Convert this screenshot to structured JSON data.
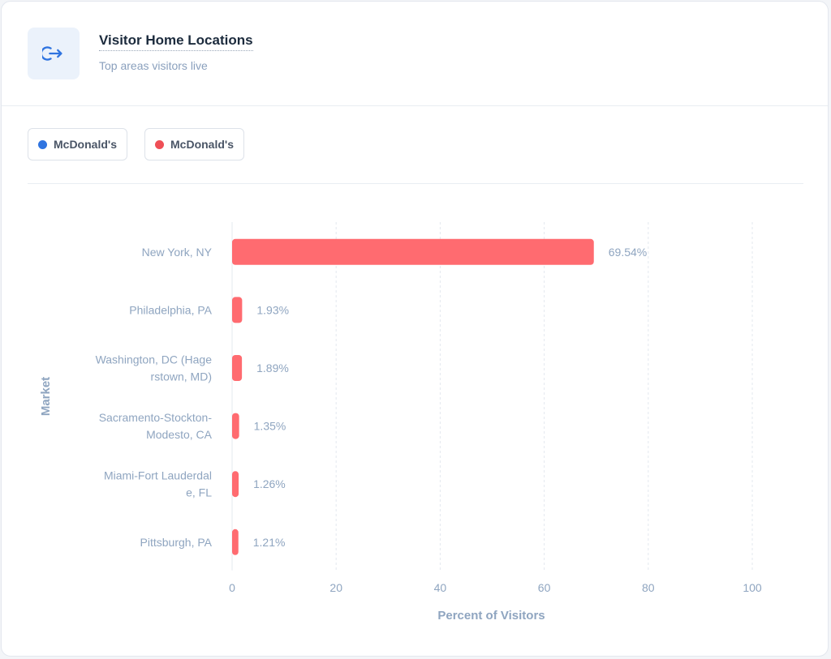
{
  "header": {
    "title": "Visitor Home Locations",
    "subtitle": "Top areas visitors live",
    "icon": "exit-arrow-icon"
  },
  "legend": [
    {
      "label": "McDonald's",
      "color": "#2f74e0"
    },
    {
      "label": "McDonald's",
      "color": "#ef4f56"
    }
  ],
  "chart_data": {
    "type": "bar",
    "orientation": "horizontal",
    "categories": [
      [
        "New York, NY"
      ],
      [
        "Philadelphia, PA"
      ],
      [
        "Washington, DC (Hage",
        "rstown, MD)"
      ],
      [
        "Sacramento-Stockton-",
        "Modesto, CA"
      ],
      [
        "Miami-Fort Lauderdal",
        "e, FL"
      ],
      [
        "Pittsburgh, PA"
      ]
    ],
    "series": [
      {
        "name": "McDonald's",
        "color": "#ff6b70",
        "values": [
          69.54,
          1.93,
          1.89,
          1.35,
          1.26,
          1.21
        ]
      }
    ],
    "value_labels": [
      "69.54%",
      "1.93%",
      "1.89%",
      "1.35%",
      "1.26%",
      "1.21%"
    ],
    "xlabel": "Percent of Visitors",
    "ylabel": "Market",
    "xlim": [
      0,
      100
    ],
    "xticks": [
      0,
      20,
      40,
      60,
      80,
      100
    ],
    "grid": "vertical dashed"
  }
}
